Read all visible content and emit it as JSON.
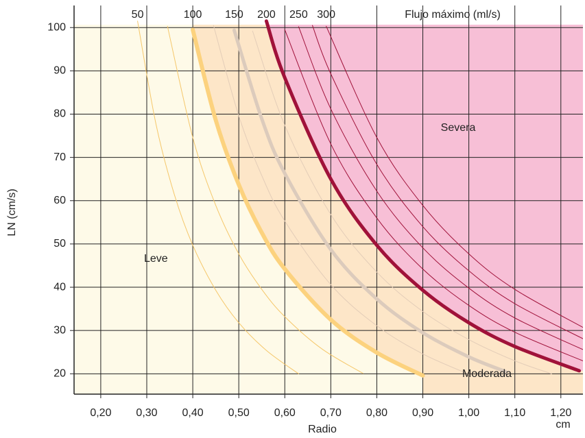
{
  "chart_data": {
    "type": "line",
    "x_label": "Radio",
    "x_unit": "cm",
    "y_label": "LN (cm/s)",
    "series_title": "Flujo máximo (ml/s)",
    "annotations": [
      "Leve",
      "Moderada",
      "Severa"
    ],
    "xlim": [
      0.142,
      1.248
    ],
    "ylim": [
      15.3,
      105.1
    ],
    "xticks": [
      {
        "value": 0.2,
        "label": "0,20"
      },
      {
        "value": 0.3,
        "label": "0,30"
      },
      {
        "value": 0.4,
        "label": "0,40"
      },
      {
        "value": 0.5,
        "label": "0,50"
      },
      {
        "value": 0.6,
        "label": "0,60"
      },
      {
        "value": 0.7,
        "label": "0,70"
      },
      {
        "value": 0.8,
        "label": "0,80"
      },
      {
        "value": 0.9,
        "label": "0,90"
      },
      {
        "value": 1.0,
        "label": "1,00"
      },
      {
        "value": 1.1,
        "label": "1,10"
      },
      {
        "value": 1.2,
        "label": "1,20"
      }
    ],
    "yticks": [
      20,
      30,
      40,
      50,
      60,
      70,
      80,
      90,
      100
    ],
    "grid": true,
    "region_colors": [
      "#fefae8",
      "#fde6c8",
      "#f7bfd6"
    ],
    "series": [
      {
        "name": "50",
        "color": "#f5c76a",
        "width": 1,
        "x": [
          0.28,
          0.32,
          0.36,
          0.4,
          0.45,
          0.5,
          0.56,
          0.63
        ],
        "values": [
          101.5,
          77.7,
          61.4,
          49.7,
          39.3,
          31.8,
          25.4,
          20.0
        ]
      },
      {
        "name": null,
        "color": "#f5c76a",
        "width": 1,
        "x": [
          0.345,
          0.4,
          0.45,
          0.5,
          0.55,
          0.6,
          0.68,
          0.77
        ],
        "values": [
          100.3,
          74.6,
          58.9,
          47.7,
          39.5,
          33.2,
          25.8,
          20.1
        ]
      },
      {
        "name": "100",
        "color": "#fcd27e",
        "width": 6,
        "x": [
          0.4,
          0.45,
          0.5,
          0.55,
          0.6,
          0.7,
          0.8,
          0.9
        ],
        "values": [
          99.5,
          78.6,
          63.7,
          52.6,
          44.2,
          32.5,
          24.9,
          19.6
        ]
      },
      {
        "name": null,
        "color": "#e3cdb8",
        "width": 1,
        "x": [
          0.445,
          0.5,
          0.55,
          0.6,
          0.7,
          0.8,
          0.9,
          1.0
        ],
        "values": [
          100.5,
          79.6,
          65.8,
          55.3,
          40.6,
          31.1,
          24.6,
          19.9
        ]
      },
      {
        "name": "150",
        "color": "#dccbbc",
        "width": 5,
        "x": [
          0.49,
          0.55,
          0.6,
          0.7,
          0.8,
          0.9,
          1.0,
          1.08
        ],
        "values": [
          99.4,
          78.9,
          66.3,
          48.7,
          37.3,
          29.5,
          23.9,
          20.5
        ]
      },
      {
        "name": null,
        "color": "#e3cdb8",
        "width": 1,
        "x": [
          0.53,
          0.6,
          0.7,
          0.8,
          0.9,
          1.0,
          1.1,
          1.18
        ],
        "values": [
          99.2,
          77.4,
          56.8,
          43.5,
          34.4,
          27.9,
          23.0,
          20.0
        ]
      },
      {
        "name": "200",
        "color": "#a0123a",
        "width": 5,
        "x": [
          0.56,
          0.6,
          0.7,
          0.8,
          0.9,
          1.0,
          1.1,
          1.24
        ],
        "values": [
          101.5,
          88.4,
          65.0,
          49.7,
          39.3,
          31.8,
          26.3,
          20.7
        ]
      },
      {
        "name": null,
        "color": "#a0123a",
        "width": 1,
        "x": [
          0.6,
          0.7,
          0.8,
          0.9,
          1.0,
          1.1,
          1.25
        ],
        "values": [
          99.5,
          73.1,
          56.0,
          44.2,
          35.8,
          29.6,
          22.9
        ]
      },
      {
        "name": "250",
        "color": "#a0123a",
        "width": 1,
        "x": [
          0.63,
          0.7,
          0.8,
          0.9,
          1.0,
          1.1,
          1.25
        ],
        "values": [
          100.2,
          81.2,
          62.2,
          49.1,
          39.8,
          32.9,
          25.5
        ]
      },
      {
        "name": null,
        "color": "#a0123a",
        "width": 1,
        "x": [
          0.66,
          0.7,
          0.8,
          0.9,
          1.0,
          1.1,
          1.25
        ],
        "values": [
          100.5,
          89.3,
          68.4,
          54.0,
          43.8,
          36.2,
          28.0
        ]
      },
      {
        "name": "300",
        "color": "#a0123a",
        "width": 1,
        "x": [
          0.69,
          0.8,
          0.9,
          1.0,
          1.1,
          1.25
        ],
        "values": [
          100.3,
          74.6,
          58.9,
          47.7,
          39.5,
          30.6
        ]
      }
    ]
  }
}
